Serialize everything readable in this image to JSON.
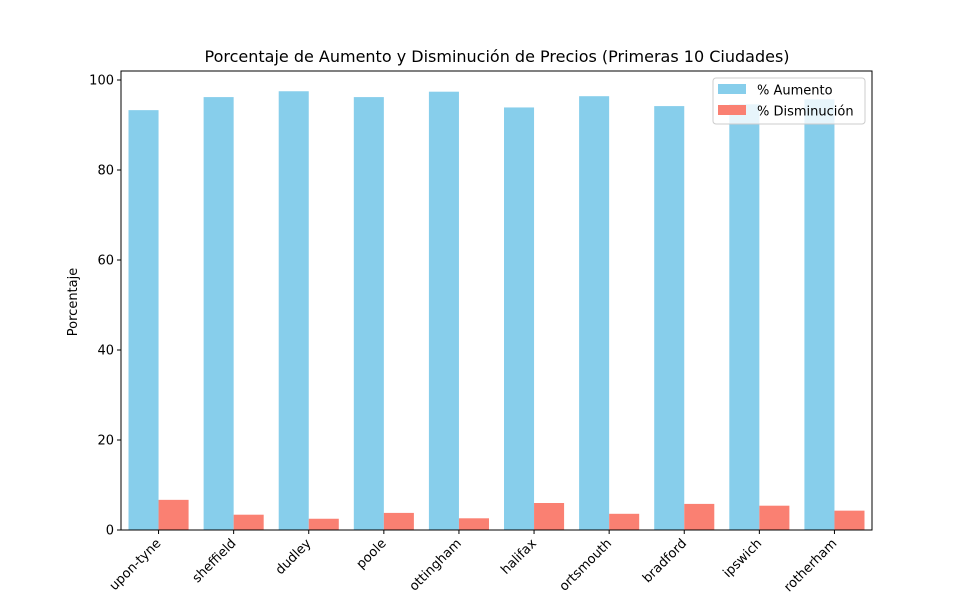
{
  "chart_data": {
    "type": "bar",
    "title": "Porcentaje de Aumento y Disminución de Precios (Primeras 10 Ciudades)",
    "xlabel": "",
    "ylabel": "Porcentaje",
    "categories": [
      "upon-tyne",
      "sheffield",
      "dudley",
      "poole",
      "ottingham",
      "halifax",
      "ortsmouth",
      "bradford",
      "ipswich",
      "rotherham"
    ],
    "series": [
      {
        "name": "% Aumento",
        "color": "#87ceeb",
        "values": [
          93.3,
          96.2,
          97.5,
          96.2,
          97.4,
          93.9,
          96.4,
          94.2,
          94.6,
          95.7
        ]
      },
      {
        "name": "% Disminución",
        "color": "#fa8072",
        "values": [
          6.7,
          3.4,
          2.5,
          3.8,
          2.6,
          6.0,
          3.6,
          5.8,
          5.4,
          4.3
        ]
      }
    ],
    "ylim": [
      0,
      102
    ],
    "yticks": [
      0,
      20,
      40,
      60,
      80,
      100
    ],
    "legend_position": "top-right",
    "grid": false
  }
}
